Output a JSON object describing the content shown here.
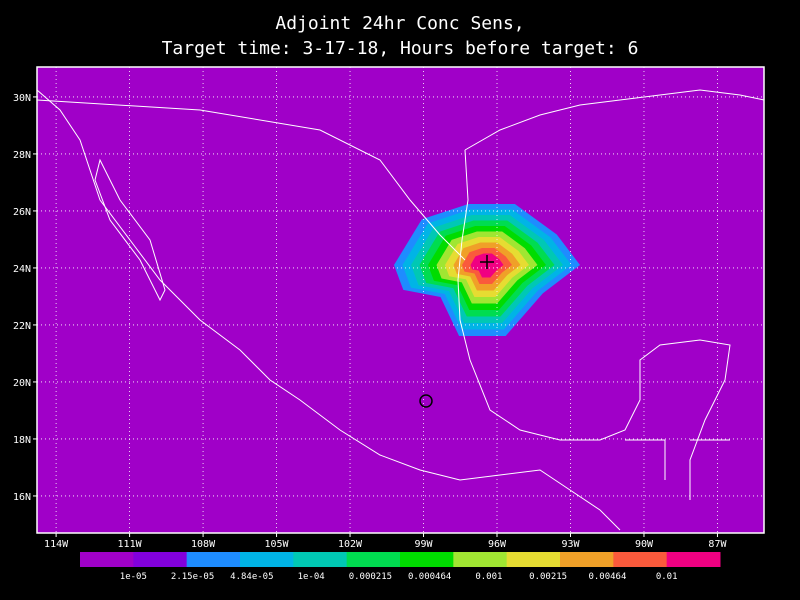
{
  "map": {
    "title": [
      "Adjoint 24hr Conc Sens,",
      "Target time: 3-17-18, Hours before target: 6"
    ],
    "background": "#a000c8",
    "xlim": [
      -114.78,
      -85.1
    ],
    "ylim": [
      14.7,
      31.05
    ],
    "xticks": [
      {
        "value": -114,
        "label": "114W"
      },
      {
        "value": -111,
        "label": "111W"
      },
      {
        "value": -108,
        "label": "108W"
      },
      {
        "value": -105,
        "label": "105W"
      },
      {
        "value": -102,
        "label": "102W"
      },
      {
        "value": -99,
        "label": "99W"
      },
      {
        "value": -96,
        "label": "96W"
      },
      {
        "value": -93,
        "label": "93W"
      },
      {
        "value": -90,
        "label": "90W"
      },
      {
        "value": -87,
        "label": "87W"
      }
    ],
    "yticks": [
      {
        "value": 16,
        "label": "16N"
      },
      {
        "value": 18,
        "label": "18N"
      },
      {
        "value": 20,
        "label": "20N"
      },
      {
        "value": 22,
        "label": "22N"
      },
      {
        "value": 24,
        "label": "24N"
      },
      {
        "value": 26,
        "label": "26N"
      },
      {
        "value": 28,
        "label": "28N"
      },
      {
        "value": 30,
        "label": "30N"
      }
    ],
    "grid": true
  },
  "colorbar": {
    "colors": [
      "#a000c8",
      "#8200dc",
      "#1e8cff",
      "#00b4e6",
      "#00c8b4",
      "#00dc50",
      "#00dc00",
      "#a0e632",
      "#e6dc32",
      "#f0a028",
      "#fa5a3c",
      "#f00082"
    ],
    "labels": [
      "1e-05",
      "2.15e-05",
      "4.84e-05",
      "1e-04",
      "0.000215",
      "0.000464",
      "0.001",
      "0.00215",
      "0.00464",
      "0.01"
    ]
  }
}
